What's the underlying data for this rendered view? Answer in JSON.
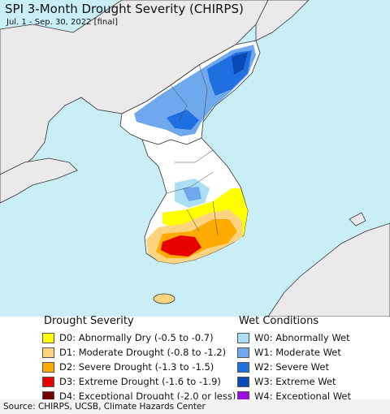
{
  "title": "SPI 3-Month Drought Severity (CHIRPS)",
  "subtitle": "Jul. 1 - Sep. 30, 2022 [final]",
  "colors": {
    "ocean": "#c9eef6",
    "land": "#ece9ea",
    "nodata": "#ffffff"
  },
  "drought_legend": {
    "heading": "Drought Severity",
    "items": [
      {
        "label": "D0: Abnormally Dry (-0.5 to -0.7)",
        "color": "#ffff00"
      },
      {
        "label": "D1: Moderate Drought (-0.8 to -1.2)",
        "color": "#fcd37f"
      },
      {
        "label": "D2: Severe Drought (-1.3 to -1.5)",
        "color": "#ffaa00"
      },
      {
        "label": "D3: Extreme Drought (-1.6 to -1.9)",
        "color": "#e60000"
      },
      {
        "label": "D4: Exceptional Drought (-2.0 or less)",
        "color": "#730000"
      }
    ]
  },
  "wet_legend": {
    "heading": "Wet Conditions",
    "items": [
      {
        "label": "W0: Abnormally Wet",
        "color": "#aadff5"
      },
      {
        "label": "W1: Moderate Wet",
        "color": "#6fa8ec"
      },
      {
        "label": "W2: Severe Wet",
        "color": "#1f6fe0"
      },
      {
        "label": "W3: Extreme Wet",
        "color": "#0b4ab4"
      },
      {
        "label": "W4: Exceptional Wet",
        "color": "#9b10e0"
      }
    ]
  },
  "source": "Source: CHIRPS, UCSB, Climate Hazards Center"
}
